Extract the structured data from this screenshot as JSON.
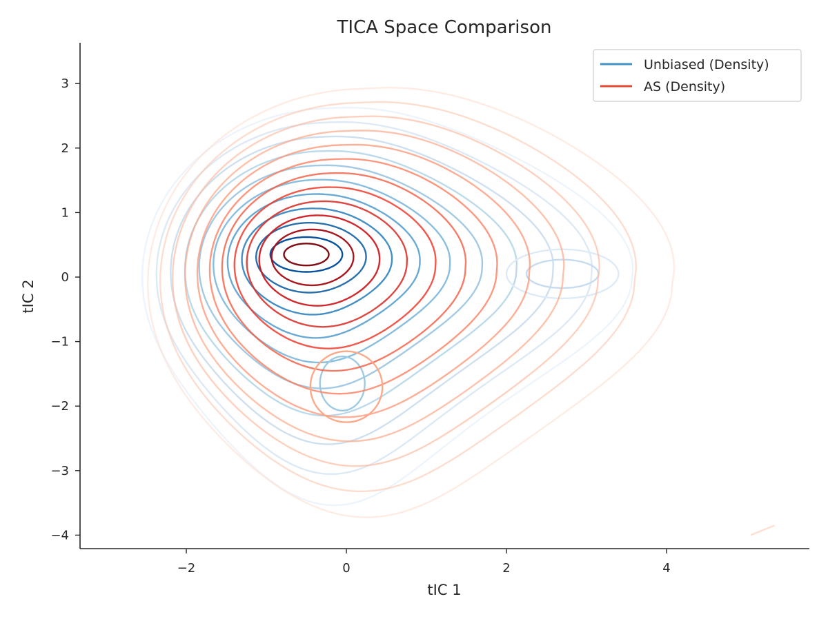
{
  "chart_data": {
    "type": "contour",
    "title": "TICA Space Comparison",
    "xlabel": "tIC 1",
    "ylabel": "tIC 2",
    "xlim": [
      -3.3,
      5.8
    ],
    "ylim": [
      -4.2,
      3.65
    ],
    "x_ticks": [
      "−2",
      "0",
      "2",
      "4"
    ],
    "y_ticks": [
      "3",
      "2",
      "1",
      "0",
      "−1",
      "−2",
      "−3",
      "−4"
    ],
    "grid": false,
    "legend_position": "upper-right",
    "series": [
      {
        "name": "Unbiased (Density)",
        "color": "#4292c6",
        "levels": 10,
        "peak": {
          "x": -0.5,
          "y": 0.35
        },
        "modes": [
          {
            "x": -0.5,
            "y": 0.35,
            "weight": 1.0
          },
          {
            "x": 2.7,
            "y": 0.05,
            "weight": 0.12
          },
          {
            "x": -0.05,
            "y": -1.65,
            "weight": 0.08
          }
        ]
      },
      {
        "name": "AS (Density)",
        "color": "#e34a33",
        "levels": 12,
        "peak": {
          "x": -0.5,
          "y": 0.35
        },
        "modes": [
          {
            "x": -0.5,
            "y": 0.35,
            "weight": 1.0
          },
          {
            "x": 2.3,
            "y": 0.0,
            "weight": 0.1
          },
          {
            "x": 0.0,
            "y": -1.9,
            "weight": 0.07
          }
        ]
      }
    ]
  }
}
